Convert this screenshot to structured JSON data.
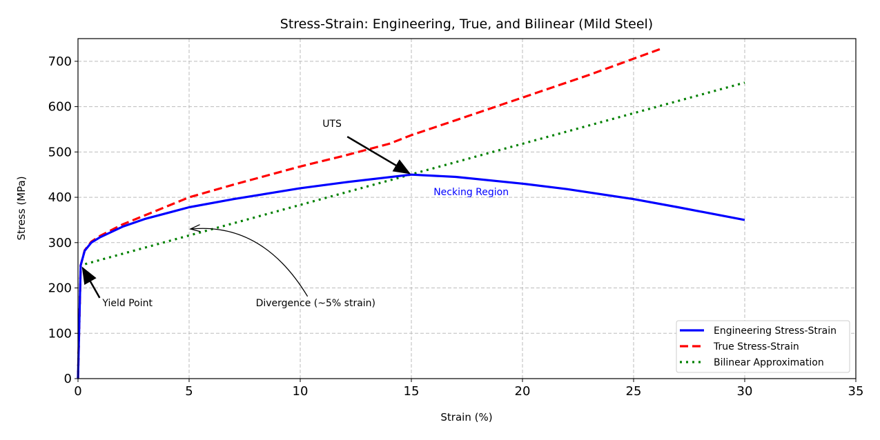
{
  "chart_data": {
    "type": "line",
    "title": "Stress-Strain: Engineering, True, and Bilinear (Mild Steel)",
    "xlabel": "Strain (%)",
    "ylabel": "Stress (MPa)",
    "xlim": [
      0,
      35
    ],
    "ylim": [
      0,
      750
    ],
    "xticks": [
      0,
      5,
      10,
      15,
      20,
      25,
      30,
      35
    ],
    "yticks": [
      0,
      100,
      200,
      300,
      400,
      500,
      600,
      700
    ],
    "grid": true,
    "legend_placement": "lower-right",
    "series": [
      {
        "name": "Engineering Stress-Strain",
        "color": "#0000ff",
        "style": "solid",
        "x": [
          0,
          0.12,
          0.3,
          0.6,
          1,
          2,
          3,
          5,
          7,
          10,
          12,
          15,
          17,
          20,
          22,
          25,
          27,
          30
        ],
        "y": [
          0,
          250,
          282,
          300,
          312,
          335,
          352,
          378,
          396,
          420,
          433,
          450,
          445,
          430,
          418,
          396,
          378,
          350
        ]
      },
      {
        "name": "True Stress-Strain",
        "color": "#ff0000",
        "style": "dashed",
        "x": [
          0,
          0.12,
          0.3,
          0.6,
          1,
          2,
          3,
          5,
          7,
          10,
          12,
          14,
          15,
          17,
          20,
          23,
          26.2
        ],
        "y": [
          0,
          250,
          283,
          302,
          315,
          340,
          360,
          400,
          428,
          468,
          492,
          518,
          537,
          570,
          620,
          670,
          727
        ]
      },
      {
        "name": "Bilinear Approximation",
        "color": "#008000",
        "style": "dotted",
        "x": [
          0,
          0.12,
          30
        ],
        "y": [
          0,
          250,
          653
        ]
      }
    ],
    "annotations": [
      {
        "text": "UTS",
        "x": 11,
        "y": 555,
        "arrow_to": [
          15,
          450
        ]
      },
      {
        "text": "Yield Point",
        "x": 1.1,
        "y": 160,
        "arrow_to": [
          0.12,
          250
        ]
      },
      {
        "text": "Divergence (~5% strain)",
        "x": 8,
        "y": 160,
        "arrow_to": [
          5,
          330
        ]
      },
      {
        "text": "Necking Region",
        "x": 16,
        "y": 405,
        "color": "#0000ff"
      }
    ]
  }
}
